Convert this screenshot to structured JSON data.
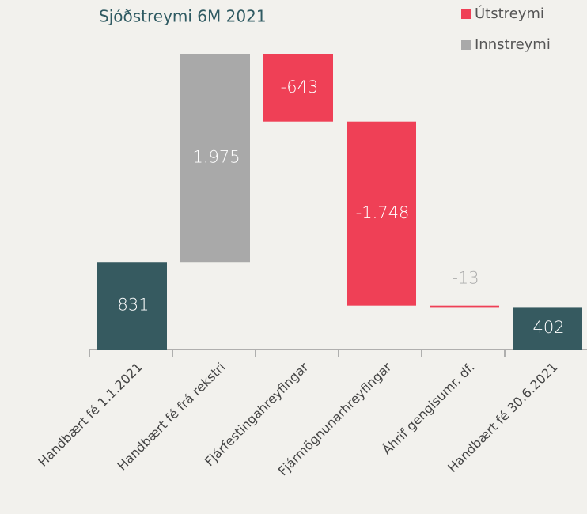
{
  "chart_data": {
    "type": "waterfall",
    "title": "Sjóðstreymi 6M 2021",
    "categories": [
      "Handbært fé 1.1.2021",
      "Handbært fé frá rekstri",
      "Fjárfestingahreyfingar",
      "Fjármögnunarhreyfingar",
      "Áhrif gengisumr. df.",
      "Handbært fé 30.6.2021"
    ],
    "values": [
      831,
      1975,
      -643,
      -1748,
      -13,
      402
    ],
    "value_labels": [
      "831",
      "1.975",
      "-643",
      "-1.748",
      "-13",
      "402"
    ],
    "total_color": "#365a60",
    "legend": [
      {
        "name": "Útstreymi",
        "color": "#ef4056"
      },
      {
        "name": "Innstreymi",
        "color": "#a9a9a9"
      }
    ]
  }
}
